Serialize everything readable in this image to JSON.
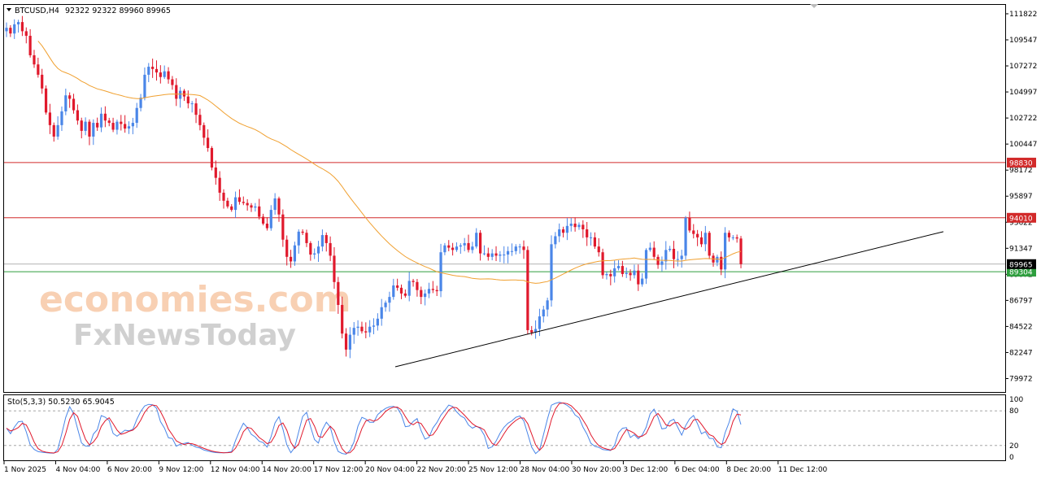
{
  "header": {
    "symbol": "BTCUSD,H4",
    "ohlc": "92322 92322 89960 89965",
    "stoch": "Sto(5,3,3) 50.5230 65.9045"
  },
  "watermark": {
    "line1": "economies.com",
    "line2": "FxNewsToday"
  },
  "colors": {
    "bull": "#4a86e8",
    "bear": "#e0192c",
    "ma": "#f0a030",
    "resistance": "#d22a2a",
    "support": "#2e9e3e",
    "grid": "#c8c8c8"
  },
  "chart_data": {
    "type": "candlestick",
    "price_ticks": [
      "111822",
      "109547",
      "107272",
      "104997",
      "102722",
      "100447",
      "98172",
      "95897",
      "93622",
      "91347",
      "89072",
      "86797",
      "84522",
      "82247",
      "79972"
    ],
    "levels": [
      {
        "label": "98830",
        "value": 98830,
        "kind": "resistance"
      },
      {
        "label": "94010",
        "value": 94010,
        "kind": "resistance"
      },
      {
        "label": "89304",
        "value": 89304,
        "kind": "support"
      },
      {
        "label": "89965",
        "value": 89965,
        "kind": "current"
      }
    ],
    "trendline": {
      "from": [
        0,
        81000
      ],
      "to": [
        170,
        92800
      ]
    },
    "time_labels": [
      "1 Nov 2025",
      "4 Nov 04:00",
      "6 Nov 20:00",
      "9 Nov 12:00",
      "12 Nov 04:00",
      "14 Nov 20:00",
      "17 Nov 12:00",
      "20 Nov 04:00",
      "22 Nov 20:00",
      "25 Nov 12:00",
      "28 Nov 04:00",
      "30 Nov 20:00",
      "3 Dec 12:00",
      "6 Dec 04:00",
      "8 Dec 20:00",
      "11 Dec 12:00"
    ],
    "closes": [
      110600,
      110100,
      110900,
      111100,
      110300,
      109900,
      108200,
      107400,
      106500,
      105300,
      103200,
      102100,
      101100,
      102100,
      103300,
      104700,
      104400,
      103400,
      102500,
      101600,
      102400,
      101100,
      102300,
      101900,
      103100,
      102500,
      102300,
      101700,
      102400,
      102200,
      101800,
      102000,
      102300,
      103600,
      104500,
      106500,
      107200,
      107000,
      106700,
      106300,
      106800,
      106100,
      105600,
      104400,
      105100,
      104600,
      104000,
      104000,
      103000,
      102100,
      101000,
      100100,
      98400,
      97500,
      96200,
      95500,
      95000,
      94700,
      95800,
      95400,
      95300,
      95100,
      94900,
      95000,
      94100,
      93500,
      93100,
      94700,
      95700,
      94300,
      92100,
      90600,
      90200,
      91600,
      92800,
      92700,
      91800,
      90800,
      90900,
      91500,
      92500,
      91800,
      90700,
      88400,
      86400,
      83900,
      82500,
      83800,
      84400,
      84500,
      84100,
      84000,
      84500,
      84600,
      85200,
      86200,
      86600,
      87100,
      88100,
      87900,
      87400,
      87200,
      88500,
      88400,
      87700,
      87100,
      87400,
      87800,
      87700,
      87600,
      91000,
      91600,
      91400,
      91200,
      91500,
      91600,
      91800,
      91200,
      91500,
      92700,
      90900,
      90900,
      90600,
      90900,
      90700,
      90800,
      90800,
      91100,
      91100,
      91500,
      91500,
      91200,
      84200,
      84000,
      84300,
      85400,
      86000,
      86800,
      91700,
      92400,
      93000,
      92700,
      93300,
      93500,
      93200,
      93400,
      93000,
      92300,
      92300,
      91500,
      91000,
      89000,
      89100,
      88900,
      89600,
      89800,
      89100,
      89200,
      89000,
      89400,
      88200,
      88700,
      91200,
      91400,
      90600,
      89900,
      90200,
      91200,
      91300,
      90400,
      90400,
      90700,
      94000,
      92900,
      92600,
      92300,
      91700,
      92700,
      90700,
      90100,
      90600,
      89500,
      92700,
      92300,
      92300,
      92200,
      89965
    ],
    "ma": [],
    "stoch_scale": [
      "100",
      "80",
      "20",
      "0"
    ],
    "stoch_levels": [
      80,
      20
    ],
    "stoch": [
      {
        "name": "%K",
        "color": "#4a86e8"
      },
      {
        "name": "%D",
        "color": "#e0192c"
      }
    ]
  }
}
